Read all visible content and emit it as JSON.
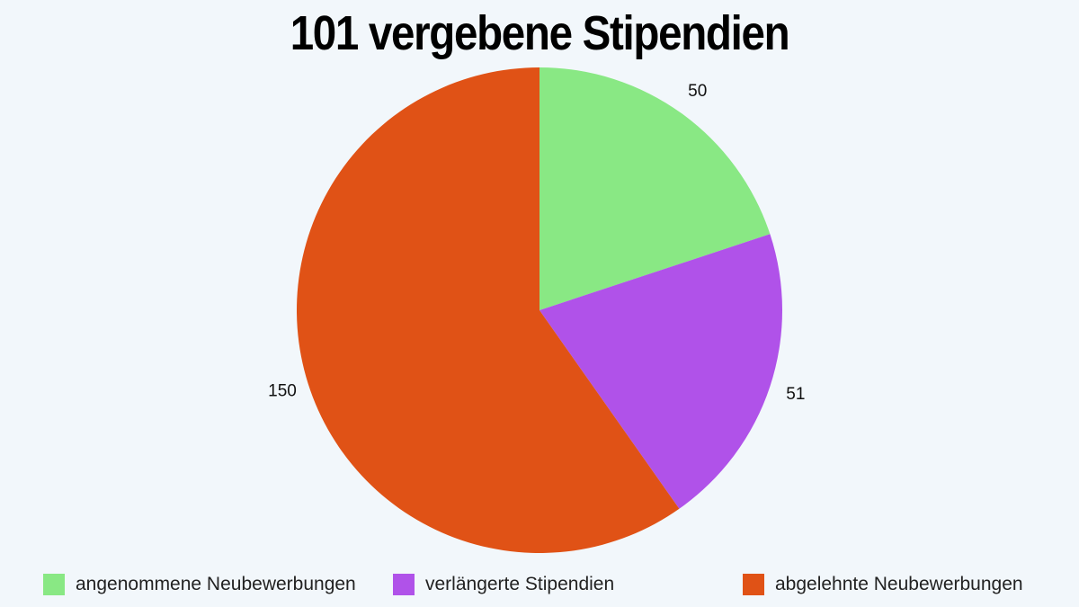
{
  "chart_data": {
    "type": "pie",
    "title": "101 vergebene Stipendien",
    "slices": [
      {
        "label": "angenommene Neubewerbungen",
        "value": 50,
        "value_label": "50",
        "color": "#89e884"
      },
      {
        "label": "verlängerte Stipendien",
        "value": 51,
        "value_label": "51",
        "color": "#b052e9"
      },
      {
        "label": "abgelehnte Neubewerbungen",
        "value": 150,
        "value_label": "150",
        "color": "#e05216"
      }
    ],
    "legend_position": "bottom",
    "start_angle": "top, clockwise"
  },
  "colors": {
    "background": "#f2f7fb"
  }
}
